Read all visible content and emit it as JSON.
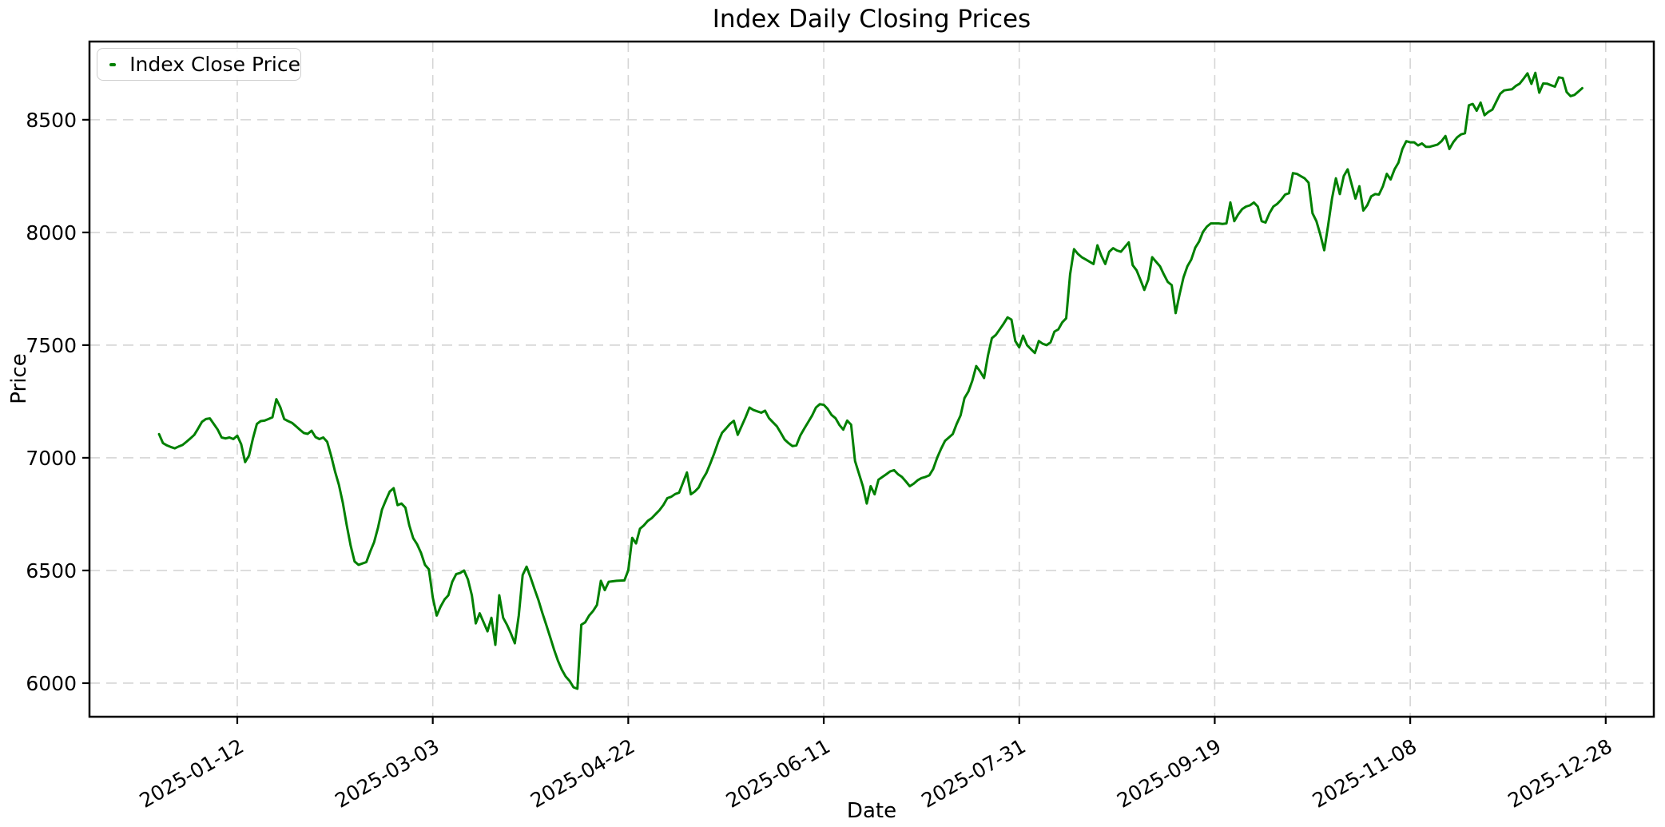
{
  "chart": {
    "title": "Index Daily Closing Prices",
    "xlabel": "Date",
    "ylabel": "Price",
    "legend": {
      "label": "Index Close Price",
      "position": "upper left"
    }
  },
  "chart_data": {
    "type": "line",
    "title": "Index Daily Closing Prices",
    "xlabel": "Date",
    "ylabel": "Price",
    "legend_entries": [
      "Index Close Price"
    ],
    "legend_position": "upper left",
    "grid": true,
    "grid_linestyle": "dashed",
    "grid_color": "#d5d5d5",
    "line_color": "#008000",
    "background_color": "#ffffff",
    "x_tick_labels": [
      "2025-01-12",
      "2025-03-03",
      "2025-04-22",
      "2025-06-11",
      "2025-07-31",
      "2025-09-19",
      "2025-11-08",
      "2025-12-28"
    ],
    "x_tick_first_point_index": 20,
    "x_tick_step_points": 50,
    "xlim_points": [
      -17.8,
      382.3
    ],
    "y_ticks": [
      6000,
      6500,
      7000,
      7500,
      8000,
      8500
    ],
    "ylim": [
      5851,
      8847
    ],
    "series": [
      {
        "name": "Index Close Price",
        "color": "#008000",
        "values": [
          7105,
          7065,
          7055,
          7048,
          7042,
          7050,
          7057,
          7071,
          7086,
          7102,
          7130,
          7160,
          7172,
          7175,
          7150,
          7125,
          7090,
          7086,
          7090,
          7083,
          7098,
          7060,
          6981,
          7010,
          7086,
          7150,
          7163,
          7165,
          7172,
          7180,
          7260,
          7225,
          7172,
          7163,
          7155,
          7140,
          7125,
          7110,
          7106,
          7120,
          7092,
          7083,
          7090,
          7071,
          7010,
          6940,
          6880,
          6800,
          6700,
          6610,
          6540,
          6525,
          6531,
          6537,
          6584,
          6626,
          6691,
          6770,
          6811,
          6850,
          6865,
          6790,
          6797,
          6779,
          6700,
          6643,
          6616,
          6578,
          6525,
          6505,
          6380,
          6300,
          6340,
          6371,
          6390,
          6450,
          6484,
          6489,
          6500,
          6460,
          6390,
          6265,
          6310,
          6270,
          6230,
          6290,
          6170,
          6390,
          6290,
          6258,
          6220,
          6177,
          6300,
          6480,
          6517,
          6470,
          6419,
          6370,
          6313,
          6260,
          6206,
          6150,
          6100,
          6060,
          6029,
          6010,
          5982,
          5975,
          6259,
          6270,
          6300,
          6320,
          6347,
          6454,
          6413,
          6450,
          6452,
          6454,
          6455,
          6456,
          6501,
          6645,
          6620,
          6685,
          6700,
          6720,
          6732,
          6750,
          6768,
          6791,
          6821,
          6827,
          6839,
          6845,
          6890,
          6935,
          6838,
          6850,
          6868,
          6904,
          6933,
          6975,
          7020,
          7070,
          7111,
          7130,
          7150,
          7164,
          7102,
          7141,
          7180,
          7223,
          7212,
          7206,
          7200,
          7209,
          7176,
          7158,
          7140,
          7111,
          7081,
          7065,
          7052,
          7055,
          7099,
          7129,
          7158,
          7187,
          7223,
          7238,
          7235,
          7217,
          7190,
          7176,
          7146,
          7125,
          7165,
          7147,
          6986,
          6930,
          6874,
          6797,
          6874,
          6838,
          6903,
          6915,
          6927,
          6940,
          6945,
          6927,
          6915,
          6895,
          6874,
          6885,
          6900,
          6910,
          6915,
          6922,
          6951,
          7000,
          7040,
          7075,
          7090,
          7105,
          7150,
          7188,
          7265,
          7294,
          7342,
          7407,
          7383,
          7354,
          7454,
          7531,
          7545,
          7570,
          7595,
          7623,
          7613,
          7518,
          7490,
          7542,
          7500,
          7482,
          7465,
          7518,
          7506,
          7500,
          7512,
          7560,
          7570,
          7601,
          7619,
          7814,
          7926,
          7905,
          7890,
          7880,
          7870,
          7860,
          7943,
          7896,
          7860,
          7914,
          7930,
          7920,
          7914,
          7935,
          7956,
          7855,
          7832,
          7790,
          7745,
          7790,
          7890,
          7870,
          7850,
          7813,
          7780,
          7766,
          7642,
          7725,
          7800,
          7850,
          7880,
          7932,
          7960,
          8002,
          8026,
          8040,
          8040,
          8040,
          8038,
          8040,
          8133,
          8050,
          8080,
          8103,
          8115,
          8120,
          8133,
          8115,
          8050,
          8044,
          8085,
          8115,
          8127,
          8145,
          8168,
          8174,
          8263,
          8260,
          8250,
          8240,
          8221,
          8085,
          8050,
          7990,
          7921,
          8030,
          8150,
          8240,
          8170,
          8250,
          8280,
          8215,
          8150,
          8205,
          8097,
          8120,
          8160,
          8170,
          8168,
          8205,
          8260,
          8235,
          8280,
          8310,
          8370,
          8405,
          8400,
          8400,
          8386,
          8395,
          8380,
          8380,
          8385,
          8390,
          8405,
          8428,
          8370,
          8400,
          8422,
          8435,
          8440,
          8564,
          8570,
          8540,
          8576,
          8520,
          8535,
          8545,
          8580,
          8615,
          8630,
          8633,
          8635,
          8650,
          8660,
          8682,
          8706,
          8659,
          8708,
          8620,
          8661,
          8660,
          8653,
          8647,
          8688,
          8685,
          8623,
          8605,
          8610,
          8625,
          8640
        ]
      }
    ]
  }
}
